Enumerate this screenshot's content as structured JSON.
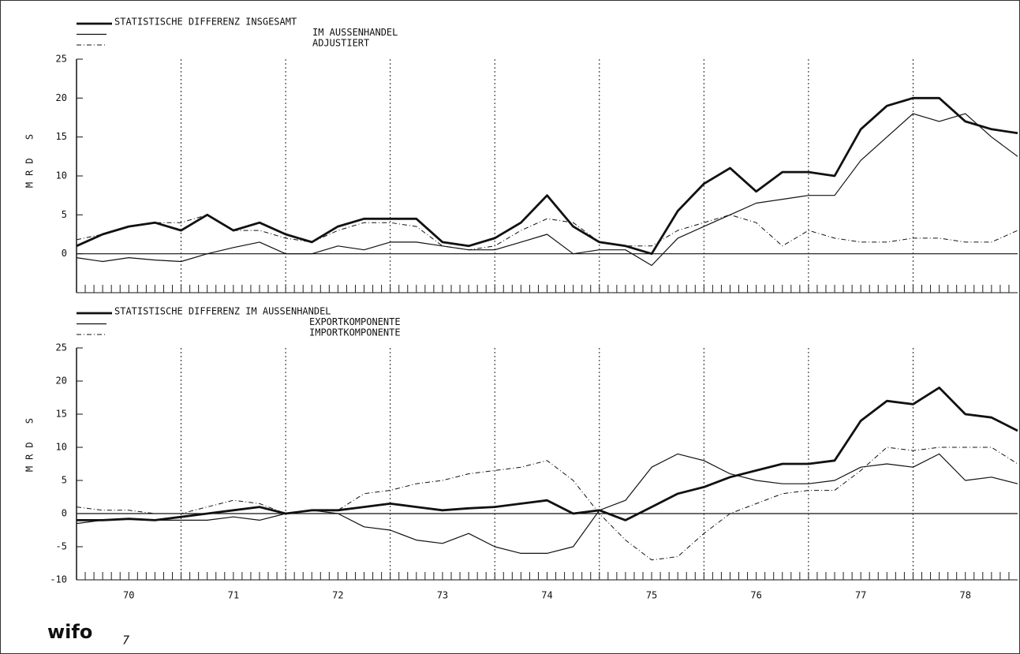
{
  "chart_data": [
    {
      "type": "line",
      "ylabel": "MRD S",
      "x": [
        70,
        70.25,
        70.5,
        70.75,
        71,
        71.25,
        71.5,
        71.75,
        72,
        72.25,
        72.5,
        72.75,
        73,
        73.25,
        73.5,
        73.75,
        74,
        74.25,
        74.5,
        74.75,
        75,
        75.25,
        75.5,
        75.75,
        76,
        76.25,
        76.5,
        76.75,
        77,
        77.25,
        77.5,
        77.75,
        78,
        78.25,
        78.5,
        78.75,
        79
      ],
      "xlim": [
        70,
        79
      ],
      "ylim": [
        -5,
        25
      ],
      "yticks": [
        0,
        5,
        10,
        15,
        20,
        25
      ],
      "series": [
        {
          "name": "STATISTISCHE DIFFERENZ INSGESAMT",
          "color": "#111111",
          "style": "thick",
          "values": [
            1,
            2.5,
            3.5,
            4,
            3,
            5,
            3,
            4,
            2.5,
            1.5,
            3.5,
            4.5,
            4.5,
            4.5,
            1.5,
            1,
            2,
            4,
            7.5,
            3.5,
            1.5,
            1,
            0,
            5.5,
            9,
            11,
            8,
            10.5,
            10.5,
            10,
            16,
            19,
            20,
            20,
            17,
            16,
            15.5
          ]
        },
        {
          "name": "IM AUSSENHANDEL",
          "color": "#111111",
          "style": "thin",
          "values": [
            -0.5,
            -1,
            -0.5,
            -0.8,
            -1,
            0,
            0.8,
            1.5,
            0,
            0,
            1,
            0.5,
            1.5,
            1.5,
            1,
            0.5,
            0.5,
            1.5,
            2.5,
            0,
            0.5,
            0.5,
            -1.5,
            2,
            3.5,
            5,
            6.5,
            7,
            7.5,
            7.5,
            12,
            15,
            18,
            17,
            18,
            15,
            12.5
          ]
        },
        {
          "name": "ADJUSTIERT",
          "color": "#111111",
          "style": "dashdot",
          "values": [
            1.8,
            2.5,
            3.5,
            4,
            4,
            5,
            3,
            3,
            2,
            1.5,
            3,
            4,
            4,
            3.5,
            1,
            0.5,
            1,
            3,
            4.5,
            4,
            1.5,
            1,
            1,
            3,
            4,
            5,
            4,
            1,
            3,
            2,
            1.5,
            1.5,
            2,
            2,
            1.5,
            1.5,
            3
          ]
        }
      ]
    },
    {
      "type": "line",
      "ylabel": "MRD S",
      "x": [
        70,
        70.25,
        70.5,
        70.75,
        71,
        71.25,
        71.5,
        71.75,
        72,
        72.25,
        72.5,
        72.75,
        73,
        73.25,
        73.5,
        73.75,
        74,
        74.25,
        74.5,
        74.75,
        75,
        75.25,
        75.5,
        75.75,
        76,
        76.25,
        76.5,
        76.75,
        77,
        77.25,
        77.5,
        77.75,
        78,
        78.25,
        78.5,
        78.75,
        79
      ],
      "xlim": [
        70,
        79
      ],
      "xticks": [
        {
          "value": 70.5,
          "label": "70"
        },
        {
          "value": 71.5,
          "label": "71"
        },
        {
          "value": 72.5,
          "label": "72"
        },
        {
          "value": 73.5,
          "label": "73"
        },
        {
          "value": 74.5,
          "label": "74"
        },
        {
          "value": 75.5,
          "label": "75"
        },
        {
          "value": 76.5,
          "label": "76"
        },
        {
          "value": 77.5,
          "label": "77"
        },
        {
          "value": 78.5,
          "label": "78"
        }
      ],
      "ylim": [
        -10,
        25
      ],
      "yticks": [
        -10,
        -5,
        0,
        5,
        10,
        15,
        20,
        25
      ],
      "series": [
        {
          "name": "STATISTISCHE DIFFERENZ IM AUSSENHANDEL",
          "color": "#111111",
          "style": "thick",
          "values": [
            -1,
            -1,
            -0.8,
            -1,
            -0.5,
            0,
            0.5,
            1,
            0,
            0.5,
            0.5,
            1,
            1.5,
            1,
            0.5,
            0.8,
            1,
            1.5,
            2,
            0,
            0.5,
            -1,
            1,
            3,
            4,
            5.5,
            6.5,
            7.5,
            7.5,
            8,
            14,
            17,
            16.5,
            19,
            15,
            14.5,
            12.5
          ]
        },
        {
          "name": "EXPORTKOMPONENTE",
          "color": "#111111",
          "style": "thin",
          "values": [
            -1.5,
            -1,
            -0.8,
            -1,
            -1,
            -1,
            -0.5,
            -1,
            0,
            0.5,
            0,
            -2,
            -2.5,
            -4,
            -4.5,
            -3,
            -5,
            -6,
            -6,
            -5,
            0.5,
            2,
            7,
            9,
            8,
            6,
            5,
            4.5,
            4.5,
            5,
            7,
            7.5,
            7,
            9,
            5,
            5.5,
            4.5
          ]
        },
        {
          "name": "IMPORTKOMPONENTE",
          "color": "#111111",
          "style": "dashdot",
          "values": [
            1,
            0.5,
            0.5,
            0,
            0,
            1,
            2,
            1.5,
            0,
            0.5,
            0.5,
            3,
            3.5,
            4.5,
            5,
            6,
            6.5,
            7,
            8,
            5,
            0,
            -4,
            -7,
            -6.5,
            -3,
            0,
            1.5,
            3,
            3.5,
            3.5,
            6.5,
            10,
            9.5,
            10,
            10,
            10,
            7.5
          ]
        }
      ]
    }
  ],
  "footer": {
    "logo": "wifo",
    "page": "7"
  }
}
